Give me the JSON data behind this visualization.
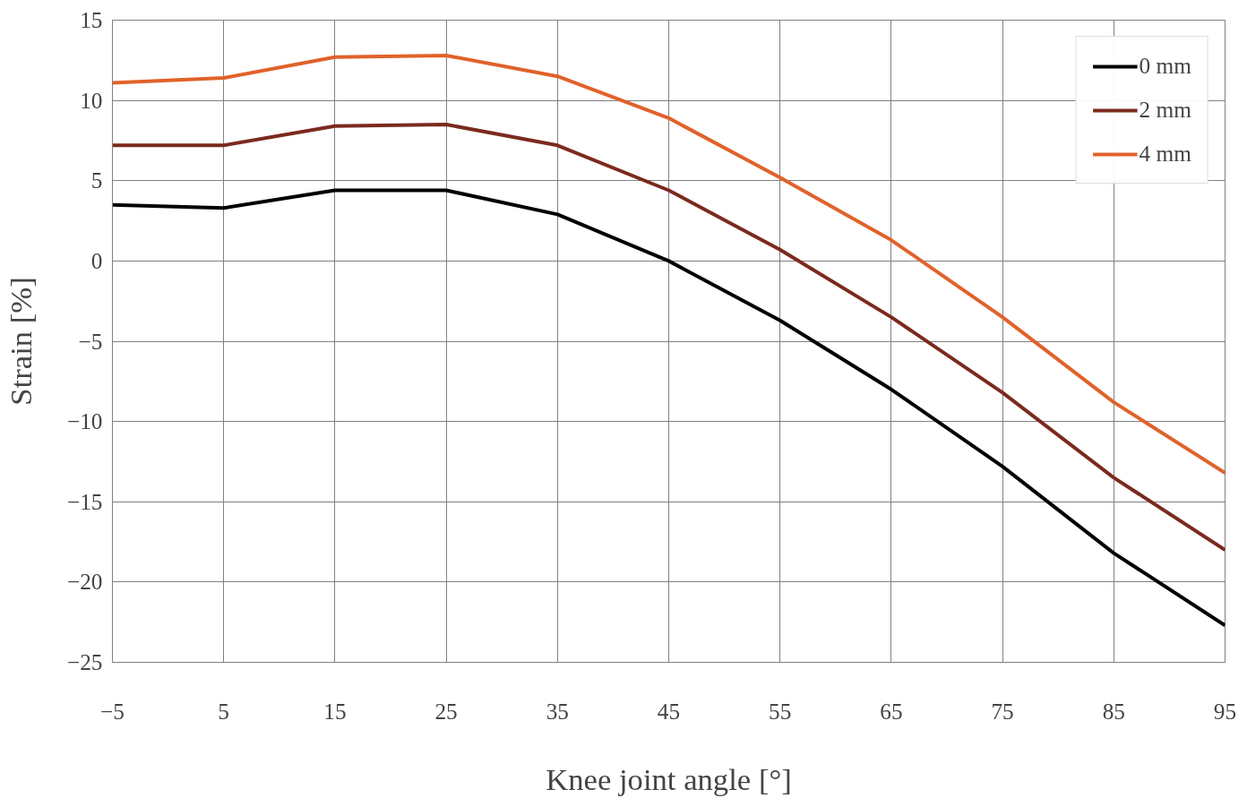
{
  "chart_data": {
    "type": "line",
    "xlabel": "Knee joint angle [°]",
    "ylabel": "Strain [%]",
    "x": [
      -5,
      5,
      15,
      25,
      35,
      45,
      55,
      65,
      75,
      85,
      95
    ],
    "series": [
      {
        "name": "0 mm",
        "color": "#000000",
        "values": [
          3.5,
          3.3,
          4.4,
          4.4,
          2.9,
          0,
          -3.7,
          -8.0,
          -12.8,
          -18.2,
          -22.7
        ]
      },
      {
        "name": "2 mm",
        "color": "#7b2a1e",
        "values": [
          7.2,
          7.2,
          8.4,
          8.5,
          7.2,
          4.4,
          0.7,
          -3.5,
          -8.2,
          -13.5,
          -18.0
        ]
      },
      {
        "name": "4 mm",
        "color": "#e0622a",
        "values": [
          11.1,
          11.4,
          12.7,
          12.8,
          11.5,
          8.9,
          5.2,
          1.3,
          -3.5,
          -8.8,
          -13.2
        ]
      }
    ],
    "xlim": [
      -5,
      95
    ],
    "xticks": [
      -5,
      5,
      15,
      25,
      35,
      45,
      55,
      65,
      75,
      85,
      95
    ],
    "ylim": [
      -25,
      15
    ],
    "yticks": [
      -25,
      -20,
      -15,
      -10,
      -5,
      0,
      5,
      10,
      15
    ],
    "grid": true,
    "legend": "top right",
    "marker": "none",
    "line_style": "solid"
  }
}
